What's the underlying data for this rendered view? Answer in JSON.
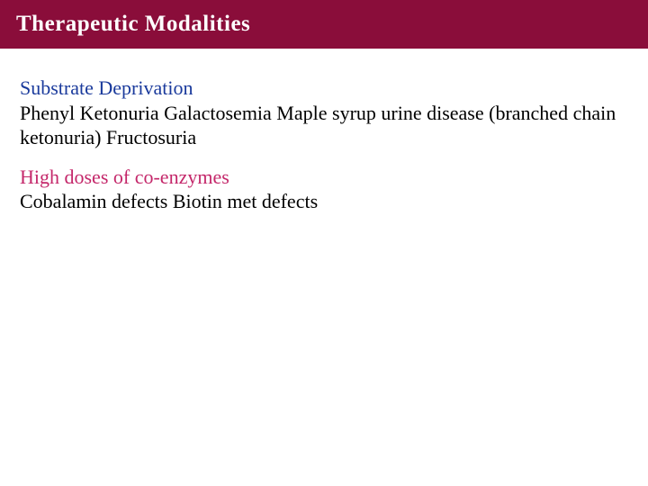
{
  "header": {
    "title": "Therapeutic   Modalities",
    "background_color": "#8a0d3a",
    "text_color": "#ffffff",
    "title_fontsize": 25,
    "title_fontweight": "bold"
  },
  "sections": [
    {
      "heading": "Substrate Deprivation",
      "heading_color": "#1a3a9c",
      "body": "Phenyl Ketonuria Galactosemia Maple syrup urine disease (branched chain ketonuria) Fructosuria",
      "body_color": "#000000"
    },
    {
      "heading": "High doses of co-enzymes",
      "heading_color": "#c4276a",
      "body": "Cobalamin defects Biotin met defects",
      "body_color": "#000000"
    }
  ],
  "page": {
    "background_color": "#ffffff",
    "font_family": "Times New Roman",
    "body_fontsize": 22
  }
}
